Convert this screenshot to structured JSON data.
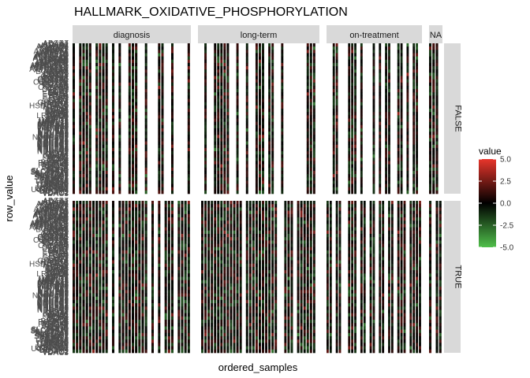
{
  "chart_data": {
    "type": "heatmap",
    "title": "HALLMARK_OXIDATIVE_PHOSPHORYLATION",
    "xlabel": "ordered_samples",
    "ylabel": "row_value",
    "column_facets": [
      "diagnosis",
      "long-term",
      "on-treatment",
      "NA"
    ],
    "row_facets": [
      "FALSE",
      "TRUE"
    ],
    "row_tick_labels": [
      "ABCB7",
      "ACAA1",
      "ACAA2",
      "ACADM",
      "ACADSB",
      "ACADVL",
      "ACAT1",
      "ACO2",
      "AFG3L2",
      "AIFM1",
      "ALAS1",
      "ALDH6A1",
      "ATP1B1",
      "ATP5F1A",
      "ATP5F1B",
      "ATP5F1C",
      "ATP5F1D",
      "ATP5F1E",
      "ATP5MC1",
      "ATP5MC2",
      "ATP5MC3",
      "ATP5ME",
      "ATP5PB",
      "ATP5PD",
      "ATP5PF",
      "ATP5PO",
      "ATP6AP1",
      "ATP6V0B",
      "ATP6V0C",
      "ATP6V0E1",
      "ATP6V1C1",
      "ATP6V1D",
      "ATP6V1E1",
      "ATP6V1F",
      "ATP6V1G1",
      "ATP6V1H",
      "BAX",
      "BCKDHA",
      "BDH2",
      "CASP7",
      "COX10",
      "COX11",
      "COX15",
      "COX17",
      "COX4I1",
      "COX5A",
      "COX5B",
      "COX6A1",
      "COX6B1",
      "COX6C",
      "COX7A2",
      "COX7A2L",
      "COX7B",
      "COX7C",
      "COX8A",
      "CPT1A",
      "CS",
      "CYB5A",
      "CYB5R3",
      "CYC1",
      "CYCS",
      "DECR1",
      "DLAT",
      "DLD",
      "DLST",
      "ECH1",
      "ECHS1",
      "ECI1",
      "ETFA",
      "ETFB",
      "ETFDH",
      "FDX1",
      "FH",
      "FXN",
      "GLUD1",
      "GOT2",
      "GPI",
      "GPX4",
      "GRPEL1",
      "HADHA",
      "HADHB",
      "HCCS",
      "HSD17B10",
      "HSPA9",
      "HTRA2",
      "IDH1",
      "IDH2",
      "IDH3A",
      "IDH3B",
      "IDH3G",
      "IMMT",
      "ISCA1",
      "ISCU",
      "LDHA",
      "LDHB",
      "LRPPRC",
      "MAOB",
      "MDH1",
      "MDH2",
      "MFN2",
      "MGST3",
      "MPC1",
      "MRPL11",
      "MRPL15",
      "MRPL34",
      "MRPL35",
      "MRPS11",
      "MRPS12",
      "MRPS15",
      "MRPS22",
      "MRPS30",
      "MTRF1",
      "MTRR",
      "MTX2",
      "NDUFA1",
      "NDUFA2",
      "NDUFA3",
      "NDUFA4",
      "NDUFA5",
      "NDUFA6",
      "NDUFA7",
      "NDUFA8",
      "NDUFA9",
      "NDUFAB1",
      "NDUFB1",
      "NDUFB2",
      "NDUFB3",
      "NDUFB4",
      "NDUFB5",
      "NDUFB6",
      "NDUFB7",
      "NDUFB8",
      "NDUFC1",
      "NDUFC2",
      "NDUFS1",
      "NDUFS2",
      "NDUFS3",
      "NDUFS4",
      "NDUFS6",
      "NDUFS7",
      "NDUFS8",
      "NDUFV1",
      "NDUFV2",
      "NNT",
      "NQO2",
      "OAT",
      "OGDH",
      "OPA1",
      "OXA1L",
      "PDHA1",
      "PDHB",
      "PDHX",
      "PDK4",
      "PDP1",
      "PHB2",
      "PHYH",
      "PMPCA",
      "POLR2F",
      "POR",
      "PRDX3",
      "RETSAT",
      "RHOT1",
      "RHOT2",
      "SDHA",
      "SDHB",
      "SDHC",
      "SDHD",
      "SLC25A11",
      "SLC25A12",
      "SLC25A20",
      "SLC25A3",
      "SLC25A4",
      "SLC25A5",
      "SLC25A6",
      "SUCLA2",
      "SUCLG1",
      "SUPV3L1",
      "SURF1",
      "TCIRG1",
      "TIMM10",
      "TIMM13",
      "TIMM17A",
      "TIMM50",
      "TIMM8B",
      "TIMM9",
      "TOMM22",
      "TOMM70",
      "UQCR10",
      "UQCR11",
      "UQCRB",
      "UQCRC1",
      "UQCRC2",
      "UQCRFS1",
      "UQCRH",
      "UQCRQ",
      "VDAC1",
      "VDAC2",
      "VDAC3"
    ],
    "columns_per_facet": [
      36,
      38,
      31,
      4
    ],
    "color_scale": {
      "name": "value",
      "min": -5,
      "max": 5,
      "ticks": [
        5.0,
        2.5,
        0.0,
        -2.5,
        -5.0
      ],
      "tick_labels": [
        "5.0",
        "2.5",
        "0.0",
        "-2.5",
        "-5.0"
      ],
      "low_color": "#4fbf4a",
      "mid_color": "#000000",
      "high_color": "#e8352b"
    },
    "legend_position": "right",
    "grid": false
  }
}
